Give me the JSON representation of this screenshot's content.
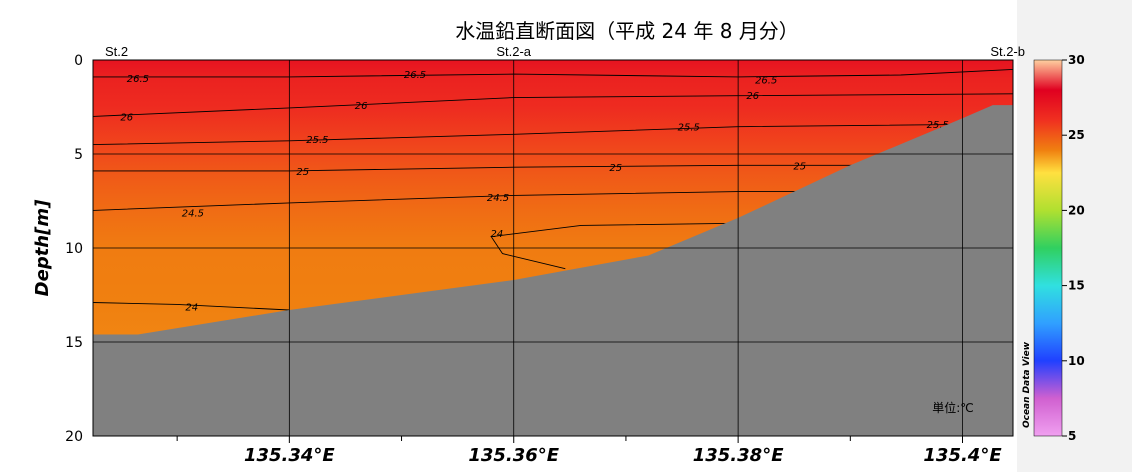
{
  "chart_data": {
    "type": "heatmap",
    "title": "水温鉛直断面図（平成 24 年 8 月分）",
    "ylabel": "Depth[m]",
    "xlim": [
      135.3225,
      135.4045
    ],
    "ylim": [
      20,
      -0.0
    ],
    "x_ticks": [
      {
        "value": 135.34,
        "label": "135.34°E"
      },
      {
        "value": 135.36,
        "label": "135.36°E"
      },
      {
        "value": 135.38,
        "label": "135.38°E"
      },
      {
        "value": 135.4,
        "label": "135.4°E"
      }
    ],
    "x_minor_ticks": [
      135.33,
      135.35,
      135.37,
      135.39
    ],
    "y_ticks": [
      {
        "value": 0,
        "label": "0"
      },
      {
        "value": 5,
        "label": "5"
      },
      {
        "value": 10,
        "label": "10"
      },
      {
        "value": 15,
        "label": "15"
      },
      {
        "value": 20,
        "label": "20"
      }
    ],
    "stations": [
      {
        "name": "St.2",
        "x": 135.3225
      },
      {
        "name": "St.2-a",
        "x": 135.36
      },
      {
        "name": "St.2-b",
        "x": 135.4045
      }
    ],
    "bathymetry": [
      {
        "x": 135.3225,
        "depth": 14.6
      },
      {
        "x": 135.3265,
        "depth": 14.6
      },
      {
        "x": 135.34,
        "depth": 13.3
      },
      {
        "x": 135.36,
        "depth": 11.7
      },
      {
        "x": 135.372,
        "depth": 10.4
      },
      {
        "x": 135.38,
        "depth": 8.4
      },
      {
        "x": 135.39,
        "depth": 5.6
      },
      {
        "x": 135.4,
        "depth": 3.1
      },
      {
        "x": 135.4027,
        "depth": 2.4
      },
      {
        "x": 135.4045,
        "depth": 2.4
      }
    ],
    "temperature_profile": [
      {
        "depth": 0,
        "temp": 27.2
      },
      {
        "depth": 1.0,
        "temp": 26.6
      },
      {
        "depth": 2.5,
        "temp": 26.2
      },
      {
        "depth": 4.5,
        "temp": 25.5
      },
      {
        "depth": 6.0,
        "temp": 25.0
      },
      {
        "depth": 8.0,
        "temp": 24.5
      },
      {
        "depth": 10.0,
        "temp": 24.1
      },
      {
        "depth": 13.0,
        "temp": 24.0
      },
      {
        "depth": 15.0,
        "temp": 23.9
      }
    ],
    "contours": [
      {
        "level": 26.5,
        "label": "26.5",
        "points": [
          [
            135.3225,
            0.9
          ],
          [
            135.34,
            0.9
          ],
          [
            135.36,
            0.75
          ],
          [
            135.38,
            0.9
          ],
          [
            135.3945,
            0.8
          ],
          [
            135.4045,
            0.5
          ]
        ],
        "labels": [
          [
            135.3265,
            0.95
          ],
          [
            135.3512,
            0.75
          ],
          [
            135.3825,
            1.05
          ]
        ]
      },
      {
        "level": 26,
        "label": "26",
        "points": [
          [
            135.3225,
            3.0
          ],
          [
            135.34,
            2.55
          ],
          [
            135.36,
            2.0
          ],
          [
            135.38,
            1.9
          ],
          [
            135.4045,
            1.8
          ]
        ],
        "labels": [
          [
            135.3255,
            3.0
          ],
          [
            135.3464,
            2.4
          ],
          [
            135.3813,
            1.85
          ]
        ]
      },
      {
        "level": 25.5,
        "label": "25.5",
        "points": [
          [
            135.3225,
            4.5
          ],
          [
            135.34,
            4.3
          ],
          [
            135.36,
            3.95
          ],
          [
            135.38,
            3.55
          ],
          [
            135.4045,
            3.4
          ]
        ],
        "labels": [
          [
            135.3425,
            4.2
          ],
          [
            135.3756,
            3.55
          ],
          [
            135.3978,
            3.4
          ]
        ]
      },
      {
        "level": 25,
        "label": "25",
        "points": [
          [
            135.3225,
            5.9
          ],
          [
            135.34,
            5.9
          ],
          [
            135.36,
            5.7
          ],
          [
            135.38,
            5.6
          ],
          [
            135.392,
            5.6
          ]
        ],
        "labels": [
          [
            135.3412,
            5.9
          ],
          [
            135.3691,
            5.7
          ],
          [
            135.3855,
            5.6
          ]
        ]
      },
      {
        "level": 24.5,
        "label": "24.5",
        "points": [
          [
            135.3225,
            8.0
          ],
          [
            135.34,
            7.6
          ],
          [
            135.36,
            7.2
          ],
          [
            135.38,
            7.0
          ],
          [
            135.3856,
            7.0
          ]
        ],
        "labels": [
          [
            135.3314,
            8.1
          ],
          [
            135.3586,
            7.3
          ]
        ]
      },
      {
        "level": 24,
        "label": "24",
        "points": [
          [
            135.3646,
            11.1
          ],
          [
            135.359,
            10.3
          ],
          [
            135.358,
            9.4
          ],
          [
            135.366,
            8.8
          ],
          [
            135.378,
            8.7
          ],
          [
            135.3834,
            8.7
          ]
        ],
        "labels": [
          [
            135.3585,
            9.2
          ]
        ]
      },
      {
        "level": 24,
        "label": "24",
        "points": [
          [
            135.3225,
            12.9
          ],
          [
            135.33,
            13.0
          ],
          [
            135.34,
            13.3
          ]
        ],
        "labels": [
          [
            135.3313,
            13.1
          ]
        ]
      }
    ],
    "colorbar": {
      "min": 5,
      "max": 30,
      "ticks": [
        {
          "value": 30,
          "label": "30"
        },
        {
          "value": 25,
          "label": "25"
        },
        {
          "value": 20,
          "label": "20"
        },
        {
          "value": 15,
          "label": "15"
        },
        {
          "value": 10,
          "label": "10"
        },
        {
          "value": 5,
          "label": "5"
        }
      ],
      "stops": [
        {
          "value": 5,
          "color": "#f0a0f0"
        },
        {
          "value": 7.5,
          "color": "#d060d0"
        },
        {
          "value": 10,
          "color": "#2040ff"
        },
        {
          "value": 12.5,
          "color": "#30a0ff"
        },
        {
          "value": 15,
          "color": "#30e0e0"
        },
        {
          "value": 17.5,
          "color": "#30d060"
        },
        {
          "value": 20,
          "color": "#b0e030"
        },
        {
          "value": 22.5,
          "color": "#ffe040"
        },
        {
          "value": 24,
          "color": "#f08010"
        },
        {
          "value": 26,
          "color": "#f03020"
        },
        {
          "value": 28,
          "color": "#e00020"
        },
        {
          "value": 30,
          "color": "#ffd0a0"
        }
      ]
    },
    "unit_label": "単位:℃",
    "watermark": "Ocean Data View",
    "land_color": "#808080",
    "grid": true
  }
}
